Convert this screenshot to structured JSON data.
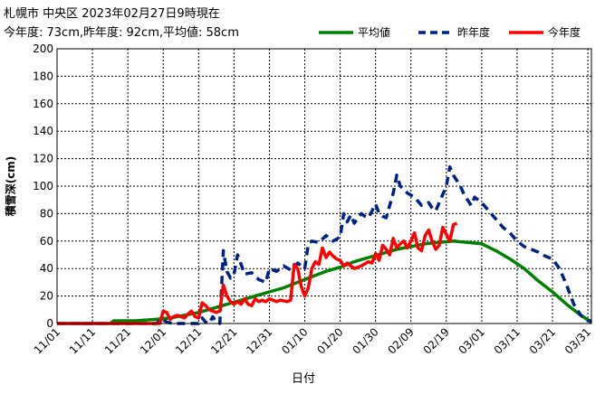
{
  "header": {
    "title": "札幌市 中央区  2023年02月27日9時現在",
    "summary": "今年度: 73cm,昨年度: 92cm,平均値: 58cm"
  },
  "chart_data": {
    "type": "line",
    "xlabel": "日付",
    "ylabel": "積雪深(cm)",
    "ylim": [
      0,
      200
    ],
    "yticks": [
      0,
      20,
      40,
      60,
      80,
      100,
      120,
      140,
      160,
      180,
      200
    ],
    "x_range_days": [
      0,
      151
    ],
    "xticks": [
      {
        "label": "11/01",
        "day": 0
      },
      {
        "label": "11/11",
        "day": 10
      },
      {
        "label": "11/21",
        "day": 20
      },
      {
        "label": "12/01",
        "day": 30
      },
      {
        "label": "12/11",
        "day": 40
      },
      {
        "label": "12/21",
        "day": 50
      },
      {
        "label": "12/31",
        "day": 60
      },
      {
        "label": "01/10",
        "day": 70
      },
      {
        "label": "01/20",
        "day": 80
      },
      {
        "label": "01/30",
        "day": 90
      },
      {
        "label": "02/09",
        "day": 100
      },
      {
        "label": "02/19",
        "day": 110
      },
      {
        "label": "03/01",
        "day": 120
      },
      {
        "label": "03/11",
        "day": 130
      },
      {
        "label": "03/21",
        "day": 140
      },
      {
        "label": "03/31",
        "day": 150
      }
    ],
    "grid": true,
    "legend_position": "top-right",
    "series": [
      {
        "name": "平均値",
        "color": "#008000",
        "style": "solid",
        "points": [
          [
            0,
            0
          ],
          [
            15,
            0
          ],
          [
            16,
            2
          ],
          [
            22,
            2
          ],
          [
            28,
            3
          ],
          [
            32,
            4
          ],
          [
            36,
            6
          ],
          [
            40,
            8
          ],
          [
            44,
            11
          ],
          [
            48,
            14
          ],
          [
            52,
            17
          ],
          [
            56,
            20
          ],
          [
            60,
            23
          ],
          [
            64,
            26
          ],
          [
            68,
            30
          ],
          [
            72,
            34
          ],
          [
            76,
            38
          ],
          [
            80,
            41
          ],
          [
            84,
            45
          ],
          [
            88,
            48
          ],
          [
            92,
            51
          ],
          [
            96,
            54
          ],
          [
            100,
            56
          ],
          [
            104,
            58
          ],
          [
            108,
            59
          ],
          [
            112,
            60
          ],
          [
            116,
            59
          ],
          [
            120,
            58
          ],
          [
            124,
            53
          ],
          [
            128,
            47
          ],
          [
            132,
            40
          ],
          [
            136,
            31
          ],
          [
            140,
            23
          ],
          [
            144,
            14
          ],
          [
            148,
            6
          ],
          [
            151,
            1
          ]
        ]
      },
      {
        "name": "昨年度",
        "color": "#002288",
        "style": "dashed",
        "points": [
          [
            0,
            0
          ],
          [
            28,
            0
          ],
          [
            29,
            2
          ],
          [
            30,
            3
          ],
          [
            31,
            1
          ],
          [
            33,
            0
          ],
          [
            40,
            0
          ],
          [
            41,
            4
          ],
          [
            42,
            1
          ],
          [
            43,
            0
          ],
          [
            44,
            5
          ],
          [
            45,
            1
          ],
          [
            46,
            0
          ],
          [
            47,
            53
          ],
          [
            48,
            38
          ],
          [
            49,
            33
          ],
          [
            50,
            36
          ],
          [
            51,
            50
          ],
          [
            52,
            43
          ],
          [
            53,
            36
          ],
          [
            55,
            37
          ],
          [
            57,
            32
          ],
          [
            58,
            31
          ],
          [
            59,
            30
          ],
          [
            60,
            40
          ],
          [
            62,
            38
          ],
          [
            64,
            42
          ],
          [
            66,
            39
          ],
          [
            67,
            41
          ],
          [
            68,
            44
          ],
          [
            70,
            40
          ],
          [
            71,
            58
          ],
          [
            72,
            60
          ],
          [
            74,
            59
          ],
          [
            76,
            64
          ],
          [
            78,
            60
          ],
          [
            80,
            63
          ],
          [
            81,
            80
          ],
          [
            82,
            74
          ],
          [
            83,
            79
          ],
          [
            84,
            73
          ],
          [
            86,
            80
          ],
          [
            87,
            78
          ],
          [
            88,
            77
          ],
          [
            90,
            87
          ],
          [
            91,
            80
          ],
          [
            92,
            78
          ],
          [
            93,
            77
          ],
          [
            95,
            95
          ],
          [
            96,
            108
          ],
          [
            97,
            100
          ],
          [
            99,
            95
          ],
          [
            101,
            92
          ],
          [
            103,
            86
          ],
          [
            105,
            88
          ],
          [
            106,
            84
          ],
          [
            107,
            82
          ],
          [
            108,
            88
          ],
          [
            110,
            100
          ],
          [
            111,
            114
          ],
          [
            112,
            108
          ],
          [
            114,
            100
          ],
          [
            115,
            94
          ],
          [
            117,
            86
          ],
          [
            118,
            92
          ],
          [
            120,
            88
          ],
          [
            122,
            82
          ],
          [
            124,
            76
          ],
          [
            126,
            70
          ],
          [
            128,
            66
          ],
          [
            130,
            60
          ],
          [
            132,
            56
          ],
          [
            134,
            54
          ],
          [
            136,
            52
          ],
          [
            138,
            49
          ],
          [
            140,
            47
          ],
          [
            142,
            40
          ],
          [
            144,
            28
          ],
          [
            146,
            14
          ],
          [
            148,
            6
          ],
          [
            150,
            2
          ],
          [
            151,
            2
          ]
        ]
      },
      {
        "name": "今年度",
        "color": "#ff0000",
        "style": "solid",
        "points": [
          [
            0,
            0
          ],
          [
            29,
            0
          ],
          [
            30,
            9
          ],
          [
            31,
            8
          ],
          [
            32,
            3
          ],
          [
            33,
            5
          ],
          [
            34,
            6
          ],
          [
            35,
            5
          ],
          [
            36,
            4
          ],
          [
            37,
            7
          ],
          [
            38,
            9
          ],
          [
            39,
            5
          ],
          [
            40,
            4
          ],
          [
            41,
            15
          ],
          [
            42,
            13
          ],
          [
            43,
            10
          ],
          [
            44,
            9
          ],
          [
            45,
            8
          ],
          [
            46,
            9
          ],
          [
            47,
            28
          ],
          [
            48,
            20
          ],
          [
            49,
            16
          ],
          [
            50,
            14
          ],
          [
            51,
            16
          ],
          [
            52,
            14
          ],
          [
            53,
            18
          ],
          [
            54,
            14
          ],
          [
            55,
            13
          ],
          [
            56,
            18
          ],
          [
            57,
            16
          ],
          [
            58,
            17
          ],
          [
            59,
            16
          ],
          [
            60,
            18
          ],
          [
            61,
            17
          ],
          [
            62,
            16
          ],
          [
            63,
            17
          ],
          [
            65,
            16
          ],
          [
            66,
            17
          ],
          [
            67,
            43
          ],
          [
            68,
            40
          ],
          [
            69,
            27
          ],
          [
            70,
            20
          ],
          [
            71,
            26
          ],
          [
            72,
            40
          ],
          [
            73,
            45
          ],
          [
            74,
            43
          ],
          [
            75,
            55
          ],
          [
            76,
            48
          ],
          [
            77,
            52
          ],
          [
            78,
            49
          ],
          [
            79,
            47
          ],
          [
            80,
            46
          ],
          [
            81,
            42
          ],
          [
            82,
            44
          ],
          [
            83,
            42
          ],
          [
            84,
            40
          ],
          [
            85,
            41
          ],
          [
            86,
            42
          ],
          [
            88,
            45
          ],
          [
            89,
            44
          ],
          [
            90,
            51
          ],
          [
            91,
            46
          ],
          [
            92,
            57
          ],
          [
            93,
            54
          ],
          [
            94,
            50
          ],
          [
            95,
            62
          ],
          [
            96,
            55
          ],
          [
            97,
            58
          ],
          [
            98,
            60
          ],
          [
            99,
            55
          ],
          [
            100,
            60
          ],
          [
            101,
            66
          ],
          [
            102,
            55
          ],
          [
            103,
            53
          ],
          [
            104,
            64
          ],
          [
            105,
            68
          ],
          [
            106,
            60
          ],
          [
            107,
            54
          ],
          [
            108,
            57
          ],
          [
            109,
            70
          ],
          [
            110,
            65
          ],
          [
            111,
            60
          ],
          [
            112,
            72
          ],
          [
            113,
            73
          ]
        ]
      }
    ]
  }
}
